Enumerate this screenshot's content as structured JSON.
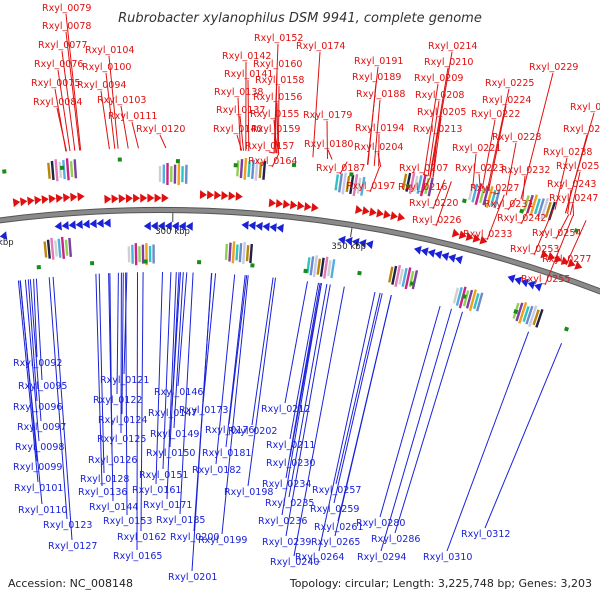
{
  "title": "Rubrobacter xylanophilus DSM 9941, complete genome",
  "footer": {
    "accession": "Accession: NC_008148",
    "info": "Topology: circular; Length: 3,225,748 bp; Genes: 3,203"
  },
  "colors": {
    "forward": "#e01010",
    "reverse": "#1a22d8",
    "backbone": "#8a8a8a",
    "marker": "#1a8a1a"
  },
  "ticks": [
    "100 kbp",
    "150 kbp",
    "200 kbp",
    "250 kbp",
    "300 kbp",
    "350 kbp"
  ],
  "forward_labels": [
    "Rxyl_0079",
    "Rxyl_0078",
    "Rxyl_0077",
    "Rxyl_0076",
    "Rxyl_0075",
    "Rxyl_0084",
    "Rxyl_0104",
    "Rxyl_0100",
    "Rxyl_0094",
    "Rxyl_0103",
    "Rxyl_0111",
    "Rxyl_0120",
    "Rxyl_0142",
    "Rxyl_0141",
    "Rxyl_0138",
    "Rxyl_0137",
    "Rxyl_0140",
    "Rxyl_0152",
    "Rxyl_0160",
    "Rxyl_0158",
    "Rxyl_0156",
    "Rxyl_0155",
    "Rxyl_0159",
    "Rxyl_0157",
    "Rxyl_0164",
    "Rxyl_0174",
    "Rxyl_0179",
    "Rxyl_0180",
    "Rxyl_0187",
    "Rxyl_0191",
    "Rxyl_0189",
    "Rxyl_0188",
    "Rxyl_0194",
    "Rxyl_0204",
    "Rxyl_0197",
    "Rxyl_0214",
    "Rxyl_0210",
    "Rxyl_0209",
    "Rxyl_0208",
    "Rxyl_0205",
    "Rxyl_0213",
    "Rxyl_0207",
    "Rxyl_0216",
    "Rxyl_0220",
    "Rxyl_0226",
    "Rxyl_0225",
    "Rxyl_0224",
    "Rxyl_0222",
    "Rxyl_0221",
    "Rxyl_0223",
    "Rxyl_0227",
    "Rxyl_0231",
    "Rxyl_0233",
    "Rxyl_0229",
    "Rxyl_0228",
    "Rxyl_0232",
    "Rxyl_0242",
    "Rxyl_0254",
    "Rxyl_0253",
    "Rxyl_0244",
    "Rxyl_0241",
    "Rxyl_0238",
    "Rxyl_0250",
    "Rxyl_0243",
    "Rxyl_0247",
    "Rxyl_0277",
    "Rxyl_0255"
  ],
  "reverse_labels": [
    "Rxyl_0092",
    "Rxyl_0095",
    "Rxyl_0096",
    "Rxyl_0097",
    "Rxyl_0098",
    "Rxyl_0099",
    "Rxyl_0101",
    "Rxyl_0110",
    "Rxyl_0123",
    "Rxyl_0127",
    "Rxyl_0121",
    "Rxyl_0122",
    "Rxyl_0124",
    "Rxyl_0125",
    "Rxyl_0126",
    "Rxyl_0128",
    "Rxyl_0136",
    "Rxyl_0144",
    "Rxyl_0153",
    "Rxyl_0162",
    "Rxyl_0165",
    "Rxyl_0146",
    "Rxyl_0147",
    "Rxyl_0149",
    "Rxyl_0150",
    "Rxyl_0151",
    "Rxyl_0161",
    "Rxyl_0171",
    "Rxyl_0185",
    "Rxyl_0200",
    "Rxyl_0201",
    "Rxyl_0173",
    "Rxyl_0176",
    "Rxyl_0181",
    "Rxyl_0182",
    "Rxyl_0198",
    "Rxyl_0199",
    "Rxyl_0212",
    "Rxyl_0202",
    "Rxyl_0211",
    "Rxyl_0230",
    "Rxyl_0234",
    "Rxyl_0235",
    "Rxyl_0236",
    "Rxyl_0239",
    "Rxyl_0240",
    "Rxyl_0257",
    "Rxyl_0259",
    "Rxyl_0261",
    "Rxyl_0265",
    "Rxyl_0264",
    "Rxyl_0280",
    "Rxyl_0286",
    "Rxyl_0294",
    "Rxyl_0312",
    "Rxyl_0310"
  ]
}
